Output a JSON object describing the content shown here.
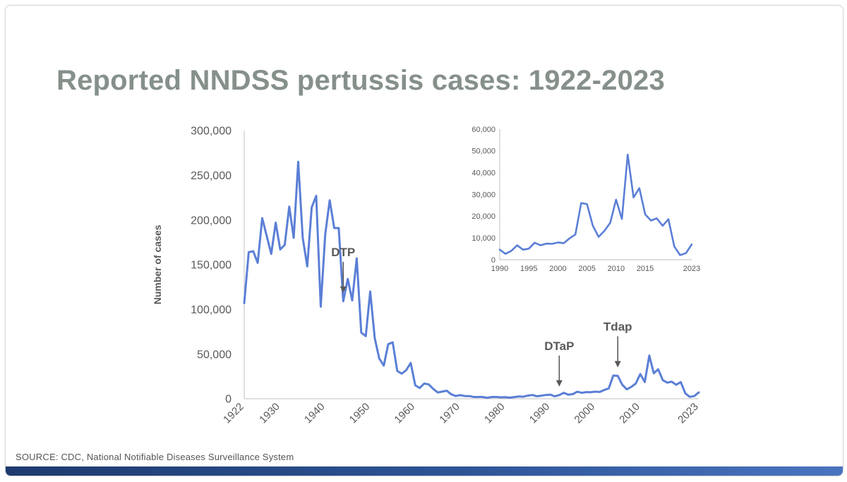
{
  "slide": {
    "title": "Reported NNDSS pertussis cases: 1922-2023",
    "source": "SOURCE: CDC, National Notifiable Diseases Surveillance System"
  },
  "colors": {
    "series": "#5b7fd6",
    "title": "#86908a",
    "axis_text": "#595959",
    "annotation_arrow": "#595959",
    "bottom_bar": "#2e5597"
  },
  "chart_data": [
    {
      "type": "line",
      "title": "",
      "ylabel": "Number of cases",
      "xlabel": "",
      "xlim": [
        1922,
        2023
      ],
      "ylim": [
        0,
        300000
      ],
      "yticks": [
        0,
        50000,
        100000,
        150000,
        200000,
        250000,
        300000
      ],
      "ytick_labels": [
        "0",
        "50,000",
        "100,000",
        "150,000",
        "200,000",
        "250,000",
        "300,000"
      ],
      "xticks": [
        1922,
        1930,
        1940,
        1950,
        1960,
        1970,
        1980,
        1990,
        2000,
        2010,
        2023
      ],
      "xtick_labels": [
        "1922",
        "1930",
        "1940",
        "1950",
        "1960",
        "1970",
        "1980",
        "1990",
        "2000",
        "2010",
        "2023"
      ],
      "grid": false,
      "annotations": [
        {
          "text": "DTP",
          "x": 1944
        },
        {
          "text": "DTaP",
          "x": 1992
        },
        {
          "text": "Tdap",
          "x": 2005
        }
      ],
      "series": [
        {
          "x": [
            1922,
            1923,
            1924,
            1925,
            1926,
            1927,
            1928,
            1929,
            1930,
            1931,
            1932,
            1933,
            1934,
            1935,
            1936,
            1937,
            1938,
            1939,
            1940,
            1941,
            1942,
            1943,
            1944,
            1945,
            1946,
            1947,
            1948,
            1949,
            1950,
            1951,
            1952,
            1953,
            1954,
            1955,
            1956,
            1957,
            1958,
            1959,
            1960,
            1961,
            1962,
            1963,
            1964,
            1965,
            1966,
            1967,
            1968,
            1969,
            1970,
            1971,
            1972,
            1973,
            1974,
            1975,
            1976,
            1977,
            1978,
            1979,
            1980,
            1981,
            1982,
            1983,
            1984,
            1985,
            1986,
            1987,
            1988,
            1989,
            1990,
            1991,
            1992,
            1993,
            1994,
            1995,
            1996,
            1997,
            1998,
            1999,
            2000,
            2001,
            2002,
            2003,
            2004,
            2005,
            2006,
            2007,
            2008,
            2009,
            2010,
            2011,
            2012,
            2013,
            2014,
            2015,
            2016,
            2017,
            2018,
            2019,
            2020,
            2021,
            2022,
            2023
          ],
          "values": [
            107000,
            164000,
            165000,
            152000,
            202000,
            182000,
            162000,
            197000,
            167000,
            172000,
            215000,
            180000,
            265000,
            180000,
            148000,
            214000,
            227000,
            103000,
            184000,
            222000,
            191000,
            191000,
            109000,
            134000,
            110000,
            157000,
            74000,
            70000,
            120000,
            68000,
            45000,
            37000,
            61000,
            63000,
            31000,
            28000,
            32000,
            40000,
            15000,
            12000,
            17000,
            16000,
            11000,
            7000,
            8000,
            9000,
            5000,
            3000,
            4000,
            3000,
            3000,
            2000,
            2000,
            2000,
            1000,
            2000,
            2000,
            1600,
            1700,
            1200,
            1900,
            2500,
            2300,
            3500,
            4200,
            2800,
            3400,
            4200,
            4600,
            2700,
            4100,
            6600,
            4600,
            5100,
            7800,
            6600,
            7400,
            7300,
            7900,
            7600,
            9800,
            11600,
            26000,
            25600,
            15600,
            10500,
            13300,
            17000,
            27600,
            18700,
            48300,
            28600,
            32900,
            20800,
            18000,
            19000,
            15600,
            18600,
            6100,
            2100,
            3000,
            7000
          ]
        }
      ]
    },
    {
      "type": "line",
      "title": "",
      "xlabel": "",
      "ylabel": "",
      "xlim": [
        1990,
        2023
      ],
      "ylim": [
        0,
        60000
      ],
      "yticks": [
        0,
        10000,
        20000,
        30000,
        40000,
        50000,
        60000
      ],
      "ytick_labels": [
        "0",
        "10,000",
        "20,000",
        "30,000",
        "40,000",
        "50,000",
        "60,000"
      ],
      "xticks": [
        1990,
        1995,
        2000,
        2005,
        2010,
        2015,
        2023
      ],
      "xtick_labels": [
        "1990",
        "1995",
        "2000",
        "2005",
        "2010",
        "2015",
        "2023"
      ],
      "grid": false,
      "series": [
        {
          "x": [
            1990,
            1991,
            1992,
            1993,
            1994,
            1995,
            1996,
            1997,
            1998,
            1999,
            2000,
            2001,
            2002,
            2003,
            2004,
            2005,
            2006,
            2007,
            2008,
            2009,
            2010,
            2011,
            2012,
            2013,
            2014,
            2015,
            2016,
            2017,
            2018,
            2019,
            2020,
            2021,
            2022,
            2023
          ],
          "values": [
            4600,
            2700,
            4100,
            6600,
            4600,
            5100,
            7800,
            6600,
            7400,
            7300,
            7900,
            7600,
            9800,
            11600,
            26000,
            25600,
            15600,
            10500,
            13300,
            17000,
            27600,
            18700,
            48300,
            28600,
            32900,
            20800,
            18000,
            19000,
            15600,
            18600,
            6100,
            2100,
            3000,
            7000
          ]
        }
      ]
    }
  ]
}
